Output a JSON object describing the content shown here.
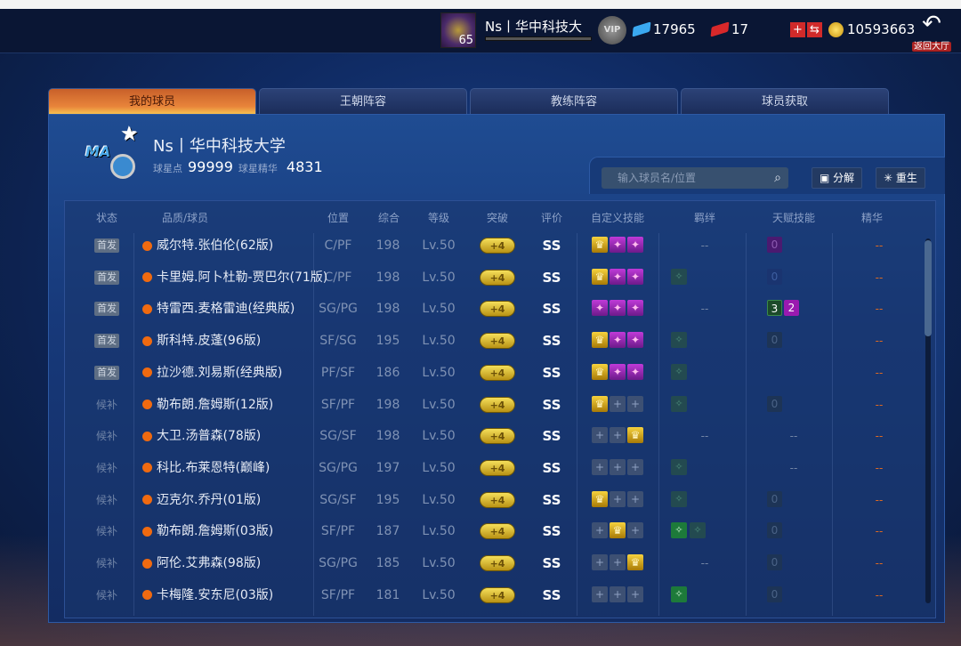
{
  "topbar": {
    "level": "65",
    "username": "Ns丨华中科技大",
    "vip": "VIP",
    "diamonds": "17965",
    "tickets": "17",
    "coins": "10593663",
    "back_label": "返回大厅",
    "colors": {
      "diamond": "#3aa8f0",
      "ticket": "#d8282a",
      "coin": "#f0c020"
    }
  },
  "tabs": [
    {
      "label": "我的球员",
      "active": true
    },
    {
      "label": "王朝阵容"
    },
    {
      "label": "教练阵容"
    },
    {
      "label": "球员获取"
    }
  ],
  "team": {
    "name": "Ns丨华中科技大学",
    "star_points_label": "球星点",
    "star_points": "99999",
    "essence_label": "球星精华",
    "essence": "4831",
    "logo_text": "MAGIC"
  },
  "search": {
    "placeholder": "输入球员名/位置"
  },
  "buttons": {
    "decompose": "分解",
    "rebirth": "重生"
  },
  "columns": [
    "状态",
    "品质/球员",
    "位置",
    "综合",
    "等级",
    "突破",
    "评价",
    "自定义技能",
    "羁绊",
    "天赋技能",
    "精华"
  ],
  "rows": [
    {
      "status": "首发",
      "name": "威尔特.张伯伦(62版)",
      "pos": "C/PF",
      "ovr": "198",
      "lv": "Lv.50",
      "brk": "+4",
      "grade": "SS",
      "skills": [
        "gold",
        "purple",
        "purple"
      ],
      "bonds": "--",
      "talent": [
        {
          "t": "purple",
          "v": "0"
        }
      ],
      "ess": "--"
    },
    {
      "status": "首发",
      "name": "卡里姆.阿卜杜勒-贾巴尔(71版)",
      "pos": "C/PF",
      "ovr": "198",
      "lv": "Lv.50",
      "brk": "+4",
      "grade": "SS",
      "skills": [
        "gold",
        "purple",
        "purple"
      ],
      "bonds": [
        "dim"
      ],
      "talent": [
        {
          "t": "blue",
          "v": "0"
        }
      ],
      "ess": "--"
    },
    {
      "status": "首发",
      "name": "特雷西.麦格雷迪(经典版)",
      "pos": "SG/PG",
      "ovr": "198",
      "lv": "Lv.50",
      "brk": "+4",
      "grade": "SS",
      "skills": [
        "purple",
        "purple",
        "purple"
      ],
      "bonds": "--",
      "talent": [
        {
          "t": "green",
          "v": "3"
        },
        {
          "t": "mag",
          "v": "2"
        }
      ],
      "ess": "--"
    },
    {
      "status": "首发",
      "name": "斯科特.皮蓬(96版)",
      "pos": "SF/SG",
      "ovr": "195",
      "lv": "Lv.50",
      "brk": "+4",
      "grade": "SS",
      "skills": [
        "gold",
        "purple",
        "purple"
      ],
      "bonds": [
        "dim"
      ],
      "talent": [
        {
          "t": "dim",
          "v": "0"
        }
      ],
      "ess": "--"
    },
    {
      "status": "首发",
      "name": "拉沙德.刘易斯(经典版)",
      "pos": "PF/SF",
      "ovr": "186",
      "lv": "Lv.50",
      "brk": "+4",
      "grade": "SS",
      "skills": [
        "gold",
        "purple",
        "purple"
      ],
      "bonds": [
        "dim"
      ],
      "talent": [],
      "ess": "--"
    },
    {
      "status": "候补",
      "name": "勒布朗.詹姆斯(12版)",
      "pos": "SF/PF",
      "ovr": "198",
      "lv": "Lv.50",
      "brk": "+4",
      "grade": "SS",
      "skills": [
        "gold",
        "empty",
        "empty"
      ],
      "bonds": [
        "dim"
      ],
      "talent": [
        {
          "t": "dim",
          "v": "0"
        }
      ],
      "ess": "--"
    },
    {
      "status": "候补",
      "name": "大卫.汤普森(78版)",
      "pos": "SG/SF",
      "ovr": "198",
      "lv": "Lv.50",
      "brk": "+4",
      "grade": "SS",
      "skills": [
        "empty",
        "empty",
        "gold"
      ],
      "bonds": "--",
      "talent": "--",
      "ess": "--"
    },
    {
      "status": "候补",
      "name": "科比.布莱恩特(巅峰)",
      "pos": "SG/PG",
      "ovr": "197",
      "lv": "Lv.50",
      "brk": "+4",
      "grade": "SS",
      "skills": [
        "empty",
        "empty",
        "empty"
      ],
      "bonds": [
        "dim"
      ],
      "talent": "--",
      "ess": "--"
    },
    {
      "status": "候补",
      "name": "迈克尔.乔丹(01版)",
      "pos": "SG/SF",
      "ovr": "195",
      "lv": "Lv.50",
      "brk": "+4",
      "grade": "SS",
      "skills": [
        "gold",
        "empty",
        "empty"
      ],
      "bonds": [
        "dim"
      ],
      "talent": [
        {
          "t": "dim",
          "v": "0"
        }
      ],
      "ess": "--"
    },
    {
      "status": "候补",
      "name": "勒布朗.詹姆斯(03版)",
      "pos": "SF/PF",
      "ovr": "187",
      "lv": "Lv.50",
      "brk": "+4",
      "grade": "SS",
      "skills": [
        "empty",
        "gold",
        "empty"
      ],
      "bonds": [
        "bright",
        "dim"
      ],
      "talent": [
        {
          "t": "dim",
          "v": "0"
        }
      ],
      "ess": "--"
    },
    {
      "status": "候补",
      "name": "阿伦.艾弗森(98版)",
      "pos": "SG/PG",
      "ovr": "185",
      "lv": "Lv.50",
      "brk": "+4",
      "grade": "SS",
      "skills": [
        "empty",
        "empty",
        "gold"
      ],
      "bonds": "--",
      "talent": [
        {
          "t": "dim",
          "v": "0"
        }
      ],
      "ess": "--"
    },
    {
      "status": "候补",
      "name": "卡梅隆.安东尼(03版)",
      "pos": "SF/PF",
      "ovr": "181",
      "lv": "Lv.50",
      "brk": "+4",
      "grade": "SS",
      "skills": [
        "empty",
        "empty",
        "empty"
      ],
      "bonds": [
        "bright"
      ],
      "talent": [
        {
          "t": "dim",
          "v": "0"
        }
      ],
      "ess": "--"
    }
  ]
}
